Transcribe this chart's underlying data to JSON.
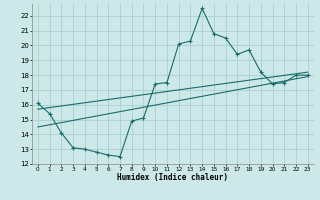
{
  "xlabel": "Humidex (Indice chaleur)",
  "bg_color": "#cce8e8",
  "grid_color": "#aacfcf",
  "line_color": "#1a6b6b",
  "xlim": [
    -0.5,
    23.5
  ],
  "ylim": [
    12,
    22.8
  ],
  "xticks": [
    0,
    1,
    2,
    3,
    4,
    5,
    6,
    7,
    8,
    9,
    10,
    11,
    12,
    13,
    14,
    15,
    16,
    17,
    18,
    19,
    20,
    21,
    22,
    23
  ],
  "yticks": [
    12,
    13,
    14,
    15,
    16,
    17,
    18,
    19,
    20,
    21,
    22
  ],
  "line1_x": [
    0,
    1,
    2,
    3,
    4,
    5,
    6,
    7,
    8,
    9,
    10,
    11,
    12,
    13,
    14,
    15,
    16,
    17,
    18,
    19,
    20,
    21,
    22,
    23
  ],
  "line1_y": [
    16.1,
    15.4,
    14.1,
    13.1,
    13.0,
    12.8,
    12.6,
    12.5,
    14.9,
    15.1,
    17.4,
    17.5,
    20.1,
    20.3,
    22.5,
    20.8,
    20.5,
    19.4,
    19.7,
    18.2,
    17.4,
    17.5,
    18.0,
    18.0
  ],
  "line2_x": [
    0,
    23
  ],
  "line2_y": [
    15.7,
    18.2
  ],
  "line3_x": [
    0,
    23
  ],
  "line3_y": [
    14.5,
    17.9
  ]
}
